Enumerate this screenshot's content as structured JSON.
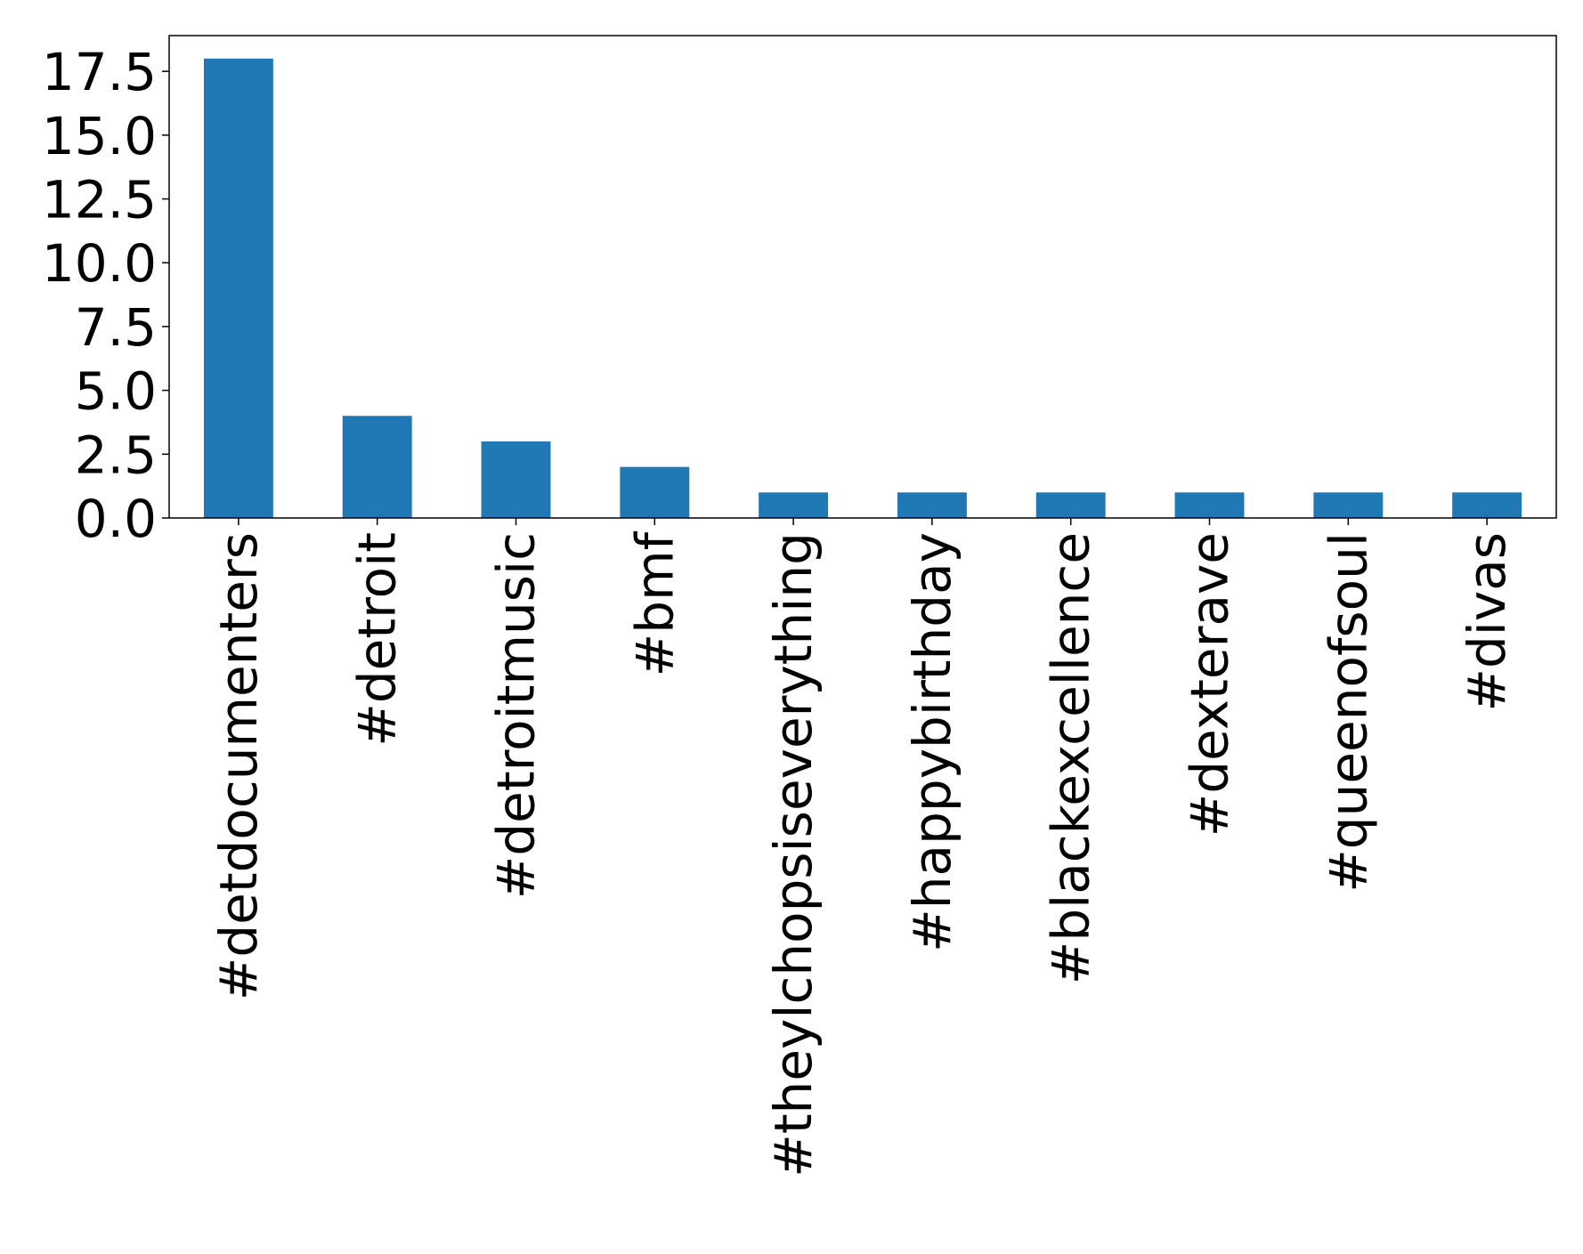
{
  "chart_data": {
    "type": "bar",
    "title": "",
    "xlabel": "",
    "ylabel": "",
    "categories": [
      "#detdocumenters",
      "#detroit",
      "#detroitmusic",
      "#bmf",
      "#theylchopsiseverything",
      "#happybirthday",
      "#blackexcellence",
      "#dexterave",
      "#queenofsoul",
      "#divas"
    ],
    "values": [
      18,
      4,
      3,
      2,
      1,
      1,
      1,
      1,
      1,
      1
    ],
    "ylim": [
      0,
      18.9
    ],
    "yticks": [
      "0.0",
      "2.5",
      "5.0",
      "7.5",
      "10.0",
      "12.5",
      "15.0",
      "17.5"
    ],
    "ytick_values": [
      0,
      2.5,
      5,
      7.5,
      10,
      12.5,
      15,
      17.5
    ],
    "bar_color": "#1f77b4",
    "grid": false,
    "legend": "none"
  }
}
